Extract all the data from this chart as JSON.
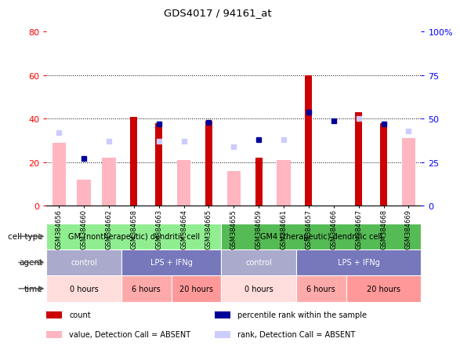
{
  "title": "GDS4017 / 94161_at",
  "samples": [
    "GSM384656",
    "GSM384660",
    "GSM384662",
    "GSM384658",
    "GSM384663",
    "GSM384664",
    "GSM384665",
    "GSM384655",
    "GSM384659",
    "GSM384661",
    "GSM384657",
    "GSM384666",
    "GSM384667",
    "GSM384668",
    "GSM384669"
  ],
  "red_bars": [
    0,
    0,
    0,
    41,
    38,
    0,
    39,
    0,
    22,
    0,
    60,
    0,
    43,
    38,
    0
  ],
  "pink_bars": [
    29,
    12,
    22,
    0,
    0,
    21,
    0,
    16,
    0,
    21,
    0,
    0,
    0,
    0,
    31
  ],
  "blue_squares": [
    0,
    27,
    0,
    0,
    47,
    0,
    48,
    0,
    38,
    0,
    54,
    49,
    0,
    47,
    0
  ],
  "lavender_squares": [
    42,
    0,
    37,
    0,
    37,
    37,
    0,
    34,
    0,
    38,
    0,
    0,
    50,
    0,
    43
  ],
  "ylim_left": [
    0,
    80
  ],
  "ylim_right": [
    0,
    100
  ],
  "yticks_left": [
    0,
    20,
    40,
    60,
    80
  ],
  "yticks_right": [
    0,
    25,
    50,
    75,
    100
  ],
  "ytick_labels_right": [
    "0",
    "25",
    "50",
    "75",
    "100%"
  ],
  "cell_type_groups": [
    {
      "label": "GM (nontherapeutic) dendritic cell",
      "start": 0,
      "end": 7,
      "color": "#90EE90"
    },
    {
      "label": "GM4 (therapeutic) dendritic cell",
      "start": 7,
      "end": 15,
      "color": "#55BB55"
    }
  ],
  "agent_groups": [
    {
      "label": "control",
      "start": 0,
      "end": 3,
      "color": "#AAAACC"
    },
    {
      "label": "LPS + IFNg",
      "start": 3,
      "end": 7,
      "color": "#7777BB"
    },
    {
      "label": "control",
      "start": 7,
      "end": 10,
      "color": "#AAAACC"
    },
    {
      "label": "LPS + IFNg",
      "start": 10,
      "end": 15,
      "color": "#7777BB"
    }
  ],
  "time_groups": [
    {
      "label": "0 hours",
      "start": 0,
      "end": 3,
      "color": "#FFDDDD"
    },
    {
      "label": "6 hours",
      "start": 3,
      "end": 5,
      "color": "#FFAAAA"
    },
    {
      "label": "20 hours",
      "start": 5,
      "end": 7,
      "color": "#FF9999"
    },
    {
      "label": "0 hours",
      "start": 7,
      "end": 10,
      "color": "#FFDDDD"
    },
    {
      "label": "6 hours",
      "start": 10,
      "end": 12,
      "color": "#FFAAAA"
    },
    {
      "label": "20 hours",
      "start": 12,
      "end": 15,
      "color": "#FF9999"
    }
  ],
  "legend_items": [
    {
      "color": "#CC0000",
      "label": "count",
      "marker": "square"
    },
    {
      "color": "#000099",
      "label": "percentile rank within the sample",
      "marker": "square"
    },
    {
      "color": "#FFB6C1",
      "label": "value, Detection Call = ABSENT",
      "marker": "square"
    },
    {
      "color": "#CCCCFF",
      "label": "rank, Detection Call = ABSENT",
      "marker": "square"
    }
  ],
  "red_color": "#CC0000",
  "pink_color": "#FFB6C1",
  "blue_color": "#000099",
  "lavender_color": "#CCCCFF",
  "grid_lines": [
    20,
    40,
    60
  ]
}
